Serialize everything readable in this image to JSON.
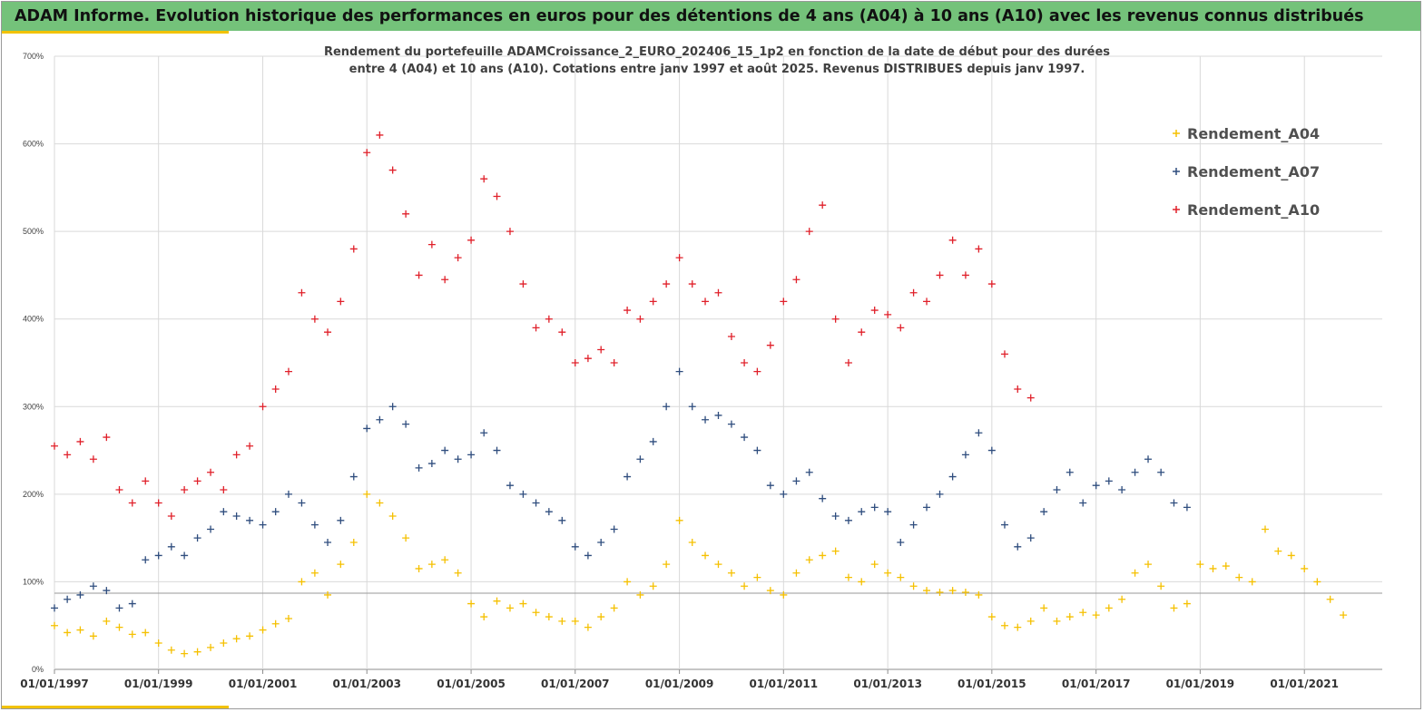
{
  "banner": {
    "title": "ADAM Informe. Evolution historique des performances en euros pour des détentions de 4 ans (A04) à 10 ans (A10) avec les revenus connus distribués",
    "color": "#74c27a",
    "accent_color": "#f2c200"
  },
  "chart_data": {
    "type": "scatter",
    "title_lines": [
      "Rendement du portefeuille ADAMCroissance_2_EURO_202406_15_1p2  en fonction de la date de début pour des durées",
      "entre 4 (A04) et 10 ans (A10). Cotations entre janv 1997 et août 2025. Revenus DISTRIBUES depuis janv 1997."
    ],
    "xlabel": "",
    "ylabel": "",
    "x_range": [
      "1997-01-01",
      "2022-07-01"
    ],
    "ylim": [
      0,
      700
    ],
    "y_ticks": [
      "0%",
      "100%",
      "200%",
      "300%",
      "400%",
      "500%",
      "600%",
      "700%"
    ],
    "x_ticks": [
      "01/01/1997",
      "01/01/1999",
      "01/01/2001",
      "01/01/2003",
      "01/01/2005",
      "01/01/2007",
      "01/01/2009",
      "01/01/2011",
      "01/01/2013",
      "01/01/2015",
      "01/01/2017",
      "01/01/2019",
      "01/01/2021"
    ],
    "grid": true,
    "reference_line_y": 87,
    "marker": "+",
    "legend_position": "top-right",
    "series": [
      {
        "name": "Rendement_A04",
        "color": "#f5c000",
        "points": [
          [
            "1997-01-01",
            50
          ],
          [
            "1997-04-01",
            42
          ],
          [
            "1997-07-01",
            45
          ],
          [
            "1997-10-01",
            38
          ],
          [
            "1998-01-01",
            55
          ],
          [
            "1998-04-01",
            48
          ],
          [
            "1998-07-01",
            40
          ],
          [
            "1998-10-01",
            42
          ],
          [
            "1999-01-01",
            30
          ],
          [
            "1999-04-01",
            22
          ],
          [
            "1999-07-01",
            18
          ],
          [
            "1999-10-01",
            20
          ],
          [
            "2000-01-01",
            25
          ],
          [
            "2000-04-01",
            30
          ],
          [
            "2000-07-01",
            35
          ],
          [
            "2000-10-01",
            38
          ],
          [
            "2001-01-01",
            45
          ],
          [
            "2001-04-01",
            52
          ],
          [
            "2001-07-01",
            58
          ],
          [
            "2001-10-01",
            100
          ],
          [
            "2002-01-01",
            110
          ],
          [
            "2002-04-01",
            85
          ],
          [
            "2002-07-01",
            120
          ],
          [
            "2002-10-01",
            145
          ],
          [
            "2003-01-01",
            200
          ],
          [
            "2003-04-01",
            190
          ],
          [
            "2003-07-01",
            175
          ],
          [
            "2003-10-01",
            150
          ],
          [
            "2004-01-01",
            115
          ],
          [
            "2004-04-01",
            120
          ],
          [
            "2004-07-01",
            125
          ],
          [
            "2004-10-01",
            110
          ],
          [
            "2005-01-01",
            75
          ],
          [
            "2005-04-01",
            60
          ],
          [
            "2005-07-01",
            78
          ],
          [
            "2005-10-01",
            70
          ],
          [
            "2006-01-01",
            75
          ],
          [
            "2006-04-01",
            65
          ],
          [
            "2006-07-01",
            60
          ],
          [
            "2006-10-01",
            55
          ],
          [
            "2007-01-01",
            55
          ],
          [
            "2007-04-01",
            48
          ],
          [
            "2007-07-01",
            60
          ],
          [
            "2007-10-01",
            70
          ],
          [
            "2008-01-01",
            100
          ],
          [
            "2008-04-01",
            85
          ],
          [
            "2008-07-01",
            95
          ],
          [
            "2008-10-01",
            120
          ],
          [
            "2009-01-01",
            170
          ],
          [
            "2009-04-01",
            145
          ],
          [
            "2009-07-01",
            130
          ],
          [
            "2009-10-01",
            120
          ],
          [
            "2010-01-01",
            110
          ],
          [
            "2010-04-01",
            95
          ],
          [
            "2010-07-01",
            105
          ],
          [
            "2010-10-01",
            90
          ],
          [
            "2011-01-01",
            85
          ],
          [
            "2011-04-01",
            110
          ],
          [
            "2011-07-01",
            125
          ],
          [
            "2011-10-01",
            130
          ],
          [
            "2012-01-01",
            135
          ],
          [
            "2012-04-01",
            105
          ],
          [
            "2012-07-01",
            100
          ],
          [
            "2012-10-01",
            120
          ],
          [
            "2013-01-01",
            110
          ],
          [
            "2013-04-01",
            105
          ],
          [
            "2013-07-01",
            95
          ],
          [
            "2013-10-01",
            90
          ],
          [
            "2014-01-01",
            88
          ],
          [
            "2014-04-01",
            90
          ],
          [
            "2014-07-01",
            88
          ],
          [
            "2014-10-01",
            85
          ],
          [
            "2015-01-01",
            60
          ],
          [
            "2015-04-01",
            50
          ],
          [
            "2015-07-01",
            48
          ],
          [
            "2015-10-01",
            55
          ],
          [
            "2016-01-01",
            70
          ],
          [
            "2016-04-01",
            55
          ],
          [
            "2016-07-01",
            60
          ],
          [
            "2016-10-01",
            65
          ],
          [
            "2017-01-01",
            62
          ],
          [
            "2017-04-01",
            70
          ],
          [
            "2017-07-01",
            80
          ],
          [
            "2017-10-01",
            110
          ],
          [
            "2018-01-01",
            120
          ],
          [
            "2018-04-01",
            95
          ],
          [
            "2018-07-01",
            70
          ],
          [
            "2018-10-01",
            75
          ],
          [
            "2019-01-01",
            120
          ],
          [
            "2019-04-01",
            115
          ],
          [
            "2019-07-01",
            118
          ],
          [
            "2019-10-01",
            105
          ],
          [
            "2020-01-01",
            100
          ],
          [
            "2020-04-01",
            160
          ],
          [
            "2020-07-01",
            135
          ],
          [
            "2020-10-01",
            130
          ],
          [
            "2021-01-01",
            115
          ],
          [
            "2021-04-01",
            100
          ],
          [
            "2021-07-01",
            80
          ],
          [
            "2021-10-01",
            62
          ]
        ]
      },
      {
        "name": "Rendement_A07",
        "color": "#2f4d7e",
        "points": [
          [
            "1997-01-01",
            70
          ],
          [
            "1997-04-01",
            80
          ],
          [
            "1997-07-01",
            85
          ],
          [
            "1997-10-01",
            95
          ],
          [
            "1998-01-01",
            90
          ],
          [
            "1998-04-01",
            70
          ],
          [
            "1998-07-01",
            75
          ],
          [
            "1998-10-01",
            125
          ],
          [
            "1999-01-01",
            130
          ],
          [
            "1999-04-01",
            140
          ],
          [
            "1999-07-01",
            130
          ],
          [
            "1999-10-01",
            150
          ],
          [
            "2000-01-01",
            160
          ],
          [
            "2000-04-01",
            180
          ],
          [
            "2000-07-01",
            175
          ],
          [
            "2000-10-01",
            170
          ],
          [
            "2001-01-01",
            165
          ],
          [
            "2001-04-01",
            180
          ],
          [
            "2001-07-01",
            200
          ],
          [
            "2001-10-01",
            190
          ],
          [
            "2002-01-01",
            165
          ],
          [
            "2002-04-01",
            145
          ],
          [
            "2002-07-01",
            170
          ],
          [
            "2002-10-01",
            220
          ],
          [
            "2003-01-01",
            275
          ],
          [
            "2003-04-01",
            285
          ],
          [
            "2003-07-01",
            300
          ],
          [
            "2003-10-01",
            280
          ],
          [
            "2004-01-01",
            230
          ],
          [
            "2004-04-01",
            235
          ],
          [
            "2004-07-01",
            250
          ],
          [
            "2004-10-01",
            240
          ],
          [
            "2005-01-01",
            245
          ],
          [
            "2005-04-01",
            270
          ],
          [
            "2005-07-01",
            250
          ],
          [
            "2005-10-01",
            210
          ],
          [
            "2006-01-01",
            200
          ],
          [
            "2006-04-01",
            190
          ],
          [
            "2006-07-01",
            180
          ],
          [
            "2006-10-01",
            170
          ],
          [
            "2007-01-01",
            140
          ],
          [
            "2007-04-01",
            130
          ],
          [
            "2007-07-01",
            145
          ],
          [
            "2007-10-01",
            160
          ],
          [
            "2008-01-01",
            220
          ],
          [
            "2008-04-01",
            240
          ],
          [
            "2008-07-01",
            260
          ],
          [
            "2008-10-01",
            300
          ],
          [
            "2009-01-01",
            340
          ],
          [
            "2009-04-01",
            300
          ],
          [
            "2009-07-01",
            285
          ],
          [
            "2009-10-01",
            290
          ],
          [
            "2010-01-01",
            280
          ],
          [
            "2010-04-01",
            265
          ],
          [
            "2010-07-01",
            250
          ],
          [
            "2010-10-01",
            210
          ],
          [
            "2011-01-01",
            200
          ],
          [
            "2011-04-01",
            215
          ],
          [
            "2011-07-01",
            225
          ],
          [
            "2011-10-01",
            195
          ],
          [
            "2012-01-01",
            175
          ],
          [
            "2012-04-01",
            170
          ],
          [
            "2012-07-01",
            180
          ],
          [
            "2012-10-01",
            185
          ],
          [
            "2013-01-01",
            180
          ],
          [
            "2013-04-01",
            145
          ],
          [
            "2013-07-01",
            165
          ],
          [
            "2013-10-01",
            185
          ],
          [
            "2014-01-01",
            200
          ],
          [
            "2014-04-01",
            220
          ],
          [
            "2014-07-01",
            245
          ],
          [
            "2014-10-01",
            270
          ],
          [
            "2015-01-01",
            250
          ],
          [
            "2015-04-01",
            165
          ],
          [
            "2015-07-01",
            140
          ],
          [
            "2015-10-01",
            150
          ],
          [
            "2016-01-01",
            180
          ],
          [
            "2016-04-01",
            205
          ],
          [
            "2016-07-01",
            225
          ],
          [
            "2016-10-01",
            190
          ],
          [
            "2017-01-01",
            210
          ],
          [
            "2017-04-01",
            215
          ],
          [
            "2017-07-01",
            205
          ],
          [
            "2017-10-01",
            225
          ],
          [
            "2018-01-01",
            240
          ],
          [
            "2018-04-01",
            225
          ],
          [
            "2018-07-01",
            190
          ],
          [
            "2018-10-01",
            185
          ]
        ]
      },
      {
        "name": "Rendement_A10",
        "color": "#e0202a",
        "points": [
          [
            "1997-01-01",
            255
          ],
          [
            "1997-04-01",
            245
          ],
          [
            "1997-07-01",
            260
          ],
          [
            "1997-10-01",
            240
          ],
          [
            "1998-01-01",
            265
          ],
          [
            "1998-04-01",
            205
          ],
          [
            "1998-07-01",
            190
          ],
          [
            "1998-10-01",
            215
          ],
          [
            "1999-01-01",
            190
          ],
          [
            "1999-04-01",
            175
          ],
          [
            "1999-07-01",
            205
          ],
          [
            "1999-10-01",
            215
          ],
          [
            "2000-01-01",
            225
          ],
          [
            "2000-04-01",
            205
          ],
          [
            "2000-07-01",
            245
          ],
          [
            "2000-10-01",
            255
          ],
          [
            "2001-01-01",
            300
          ],
          [
            "2001-04-01",
            320
          ],
          [
            "2001-07-01",
            340
          ],
          [
            "2001-10-01",
            430
          ],
          [
            "2002-01-01",
            400
          ],
          [
            "2002-04-01",
            385
          ],
          [
            "2002-07-01",
            420
          ],
          [
            "2002-10-01",
            480
          ],
          [
            "2003-01-01",
            590
          ],
          [
            "2003-04-01",
            610
          ],
          [
            "2003-07-01",
            570
          ],
          [
            "2003-10-01",
            520
          ],
          [
            "2004-01-01",
            450
          ],
          [
            "2004-04-01",
            485
          ],
          [
            "2004-07-01",
            445
          ],
          [
            "2004-10-01",
            470
          ],
          [
            "2005-01-01",
            490
          ],
          [
            "2005-04-01",
            560
          ],
          [
            "2005-07-01",
            540
          ],
          [
            "2005-10-01",
            500
          ],
          [
            "2006-01-01",
            440
          ],
          [
            "2006-04-01",
            390
          ],
          [
            "2006-07-01",
            400
          ],
          [
            "2006-10-01",
            385
          ],
          [
            "2007-01-01",
            350
          ],
          [
            "2007-04-01",
            355
          ],
          [
            "2007-07-01",
            365
          ],
          [
            "2007-10-01",
            350
          ],
          [
            "2008-01-01",
            410
          ],
          [
            "2008-04-01",
            400
          ],
          [
            "2008-07-01",
            420
          ],
          [
            "2008-10-01",
            440
          ],
          [
            "2009-01-01",
            470
          ],
          [
            "2009-04-01",
            440
          ],
          [
            "2009-07-01",
            420
          ],
          [
            "2009-10-01",
            430
          ],
          [
            "2010-01-01",
            380
          ],
          [
            "2010-04-01",
            350
          ],
          [
            "2010-07-01",
            340
          ],
          [
            "2010-10-01",
            370
          ],
          [
            "2011-01-01",
            420
          ],
          [
            "2011-04-01",
            445
          ],
          [
            "2011-07-01",
            500
          ],
          [
            "2011-10-01",
            530
          ],
          [
            "2012-01-01",
            400
          ],
          [
            "2012-04-01",
            350
          ],
          [
            "2012-07-01",
            385
          ],
          [
            "2012-10-01",
            410
          ],
          [
            "2013-01-01",
            405
          ],
          [
            "2013-04-01",
            390
          ],
          [
            "2013-07-01",
            430
          ],
          [
            "2013-10-01",
            420
          ],
          [
            "2014-01-01",
            450
          ],
          [
            "2014-04-01",
            490
          ],
          [
            "2014-07-01",
            450
          ],
          [
            "2014-10-01",
            480
          ],
          [
            "2015-01-01",
            440
          ],
          [
            "2015-04-01",
            360
          ],
          [
            "2015-07-01",
            320
          ],
          [
            "2015-10-01",
            310
          ]
        ]
      }
    ]
  }
}
